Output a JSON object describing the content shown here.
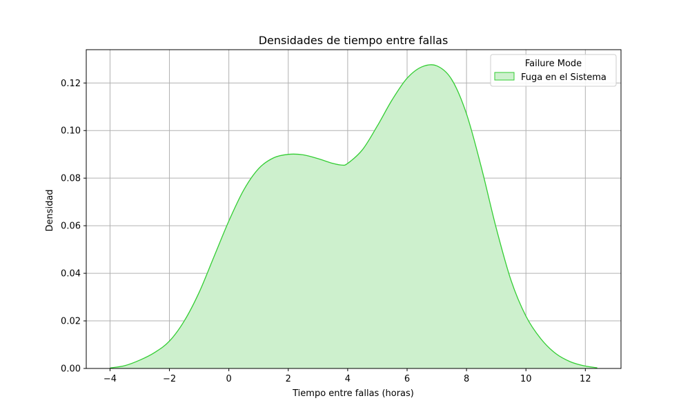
{
  "chart_data": {
    "type": "area",
    "title": "Densidades de tiempo entre fallas",
    "xlabel": "Tiempo entre fallas (horas)",
    "ylabel": "Densidad",
    "xlim": [
      -4.8,
      13.2
    ],
    "ylim": [
      0,
      0.134
    ],
    "xticks": [
      -4,
      -2,
      0,
      2,
      4,
      6,
      8,
      10,
      12
    ],
    "xtick_labels": [
      "−4",
      "−2",
      "0",
      "2",
      "4",
      "6",
      "8",
      "10",
      "12"
    ],
    "yticks": [
      0.0,
      0.02,
      0.04,
      0.06,
      0.08,
      0.1,
      0.12
    ],
    "ytick_labels": [
      "0.00",
      "0.02",
      "0.04",
      "0.06",
      "0.08",
      "0.10",
      "0.12"
    ],
    "grid": true,
    "legend": {
      "title": "Failure Mode",
      "placement": "top-right",
      "entries": [
        "Fuga en el Sistema"
      ]
    },
    "series": [
      {
        "name": "Fuga en el Sistema",
        "color": "#32cd32",
        "fill_color": "#cdf0cd",
        "x": [
          -4.0,
          -3.5,
          -3.0,
          -2.5,
          -2.0,
          -1.5,
          -1.0,
          -0.5,
          0.0,
          0.5,
          1.0,
          1.5,
          2.0,
          2.5,
          3.0,
          3.5,
          3.8,
          4.0,
          4.5,
          5.0,
          5.5,
          6.0,
          6.5,
          7.0,
          7.5,
          8.0,
          8.5,
          9.0,
          9.5,
          10.0,
          10.5,
          11.0,
          11.5,
          12.0,
          12.4
        ],
        "y": [
          0.0002,
          0.0012,
          0.0035,
          0.0067,
          0.0115,
          0.02,
          0.032,
          0.047,
          0.062,
          0.075,
          0.084,
          0.0885,
          0.09,
          0.0898,
          0.0882,
          0.0862,
          0.0855,
          0.0862,
          0.092,
          0.102,
          0.113,
          0.122,
          0.1268,
          0.1272,
          0.1215,
          0.107,
          0.0845,
          0.059,
          0.037,
          0.022,
          0.0125,
          0.0063,
          0.0028,
          0.001,
          0.0003
        ]
      }
    ]
  }
}
